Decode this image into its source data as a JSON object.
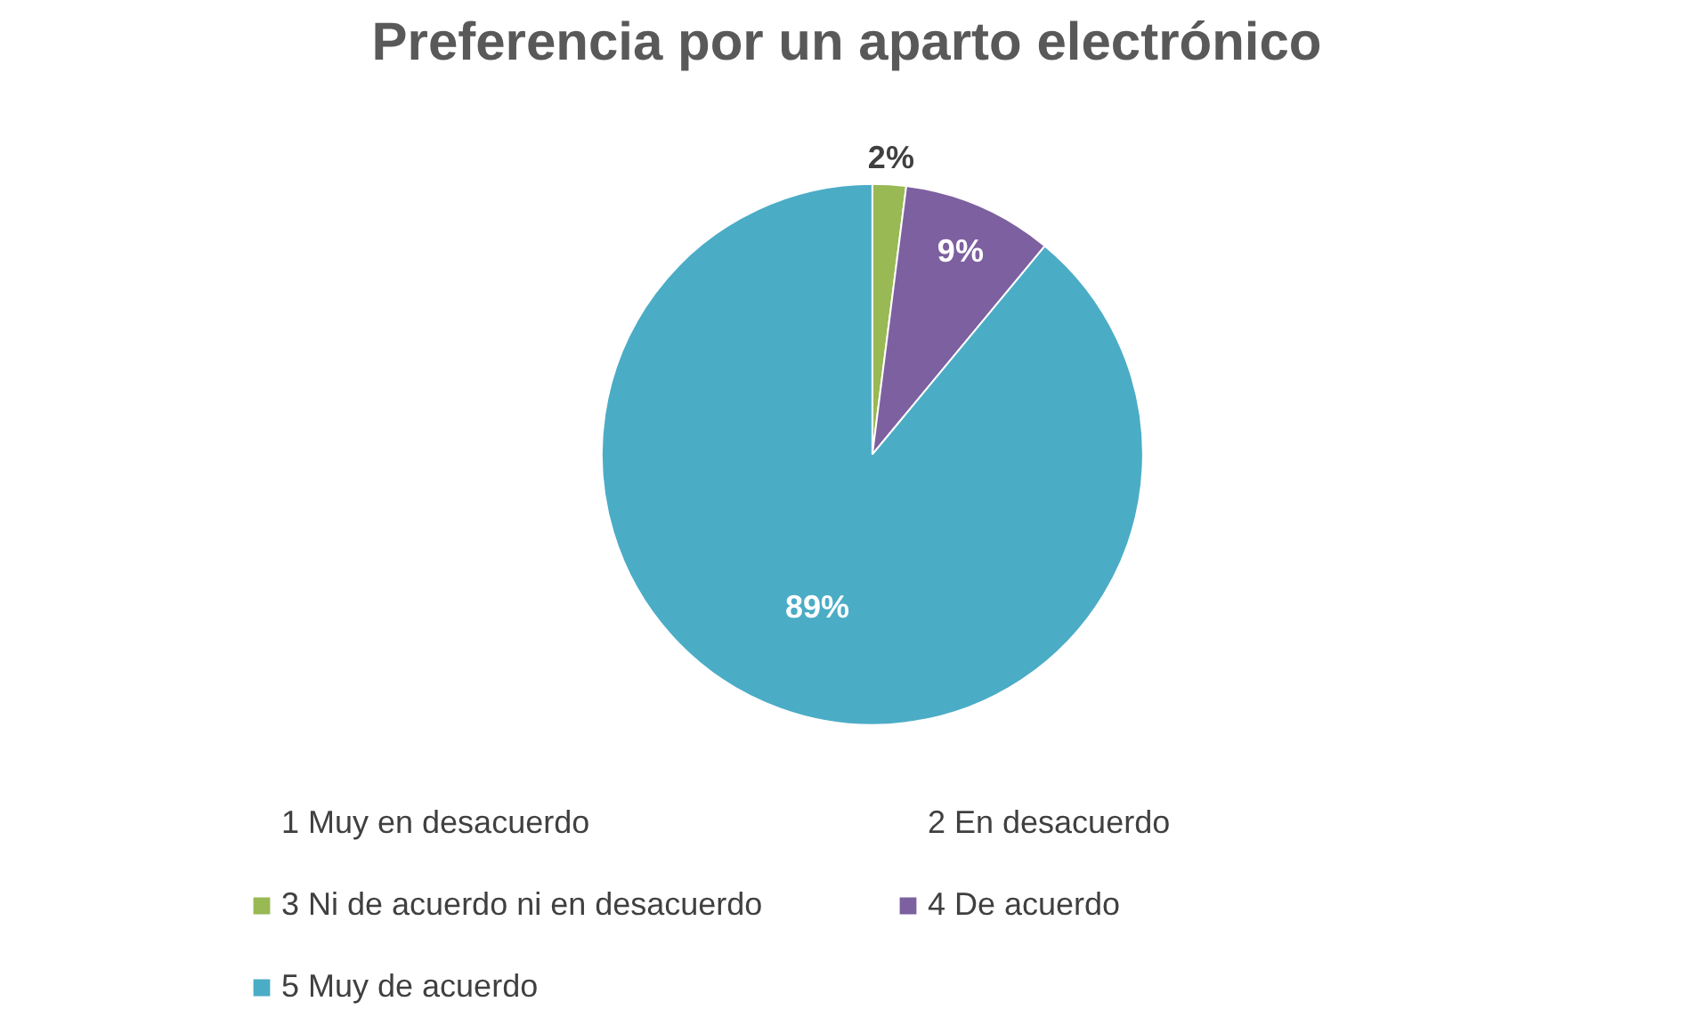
{
  "chart_data": {
    "type": "pie",
    "title": "Preferencia por un aparto electrónico",
    "categories": [
      "1 Muy en desacuerdo",
      "2 En desacuerdo",
      "3 Ni de acuerdo ni en desacuerdo",
      "4 De acuerdo",
      "5 Muy de acuerdo"
    ],
    "values": [
      0,
      0,
      2,
      9,
      89
    ],
    "colors": [
      "#4a7ebb",
      "#be4b48",
      "#98b954",
      "#7d60a0",
      "#4bacc6"
    ],
    "value_labels": [
      null,
      null,
      "2%",
      "9%",
      "89%"
    ],
    "legend": "bottom"
  }
}
